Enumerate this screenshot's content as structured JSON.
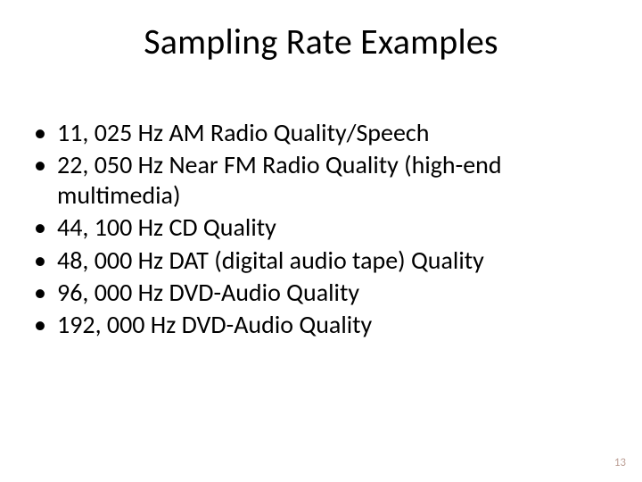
{
  "slide": {
    "title": "Sampling Rate Examples",
    "title_fontsize": 40,
    "body_fontsize": 28,
    "background_color": "#ffffff",
    "text_color": "#000000",
    "bullets": [
      "11, 025 Hz AM Radio Quality/Speech",
      "22, 050 Hz Near FM Radio Quality (high-end multimedia)",
      "44, 100 Hz CD Quality",
      "48, 000 Hz DAT (digital audio tape) Quality",
      "96, 000 Hz DVD-Audio Quality",
      "192, 000 Hz DVD-Audio Quality"
    ],
    "page_number": "13",
    "page_number_color": "#bfa39a"
  }
}
